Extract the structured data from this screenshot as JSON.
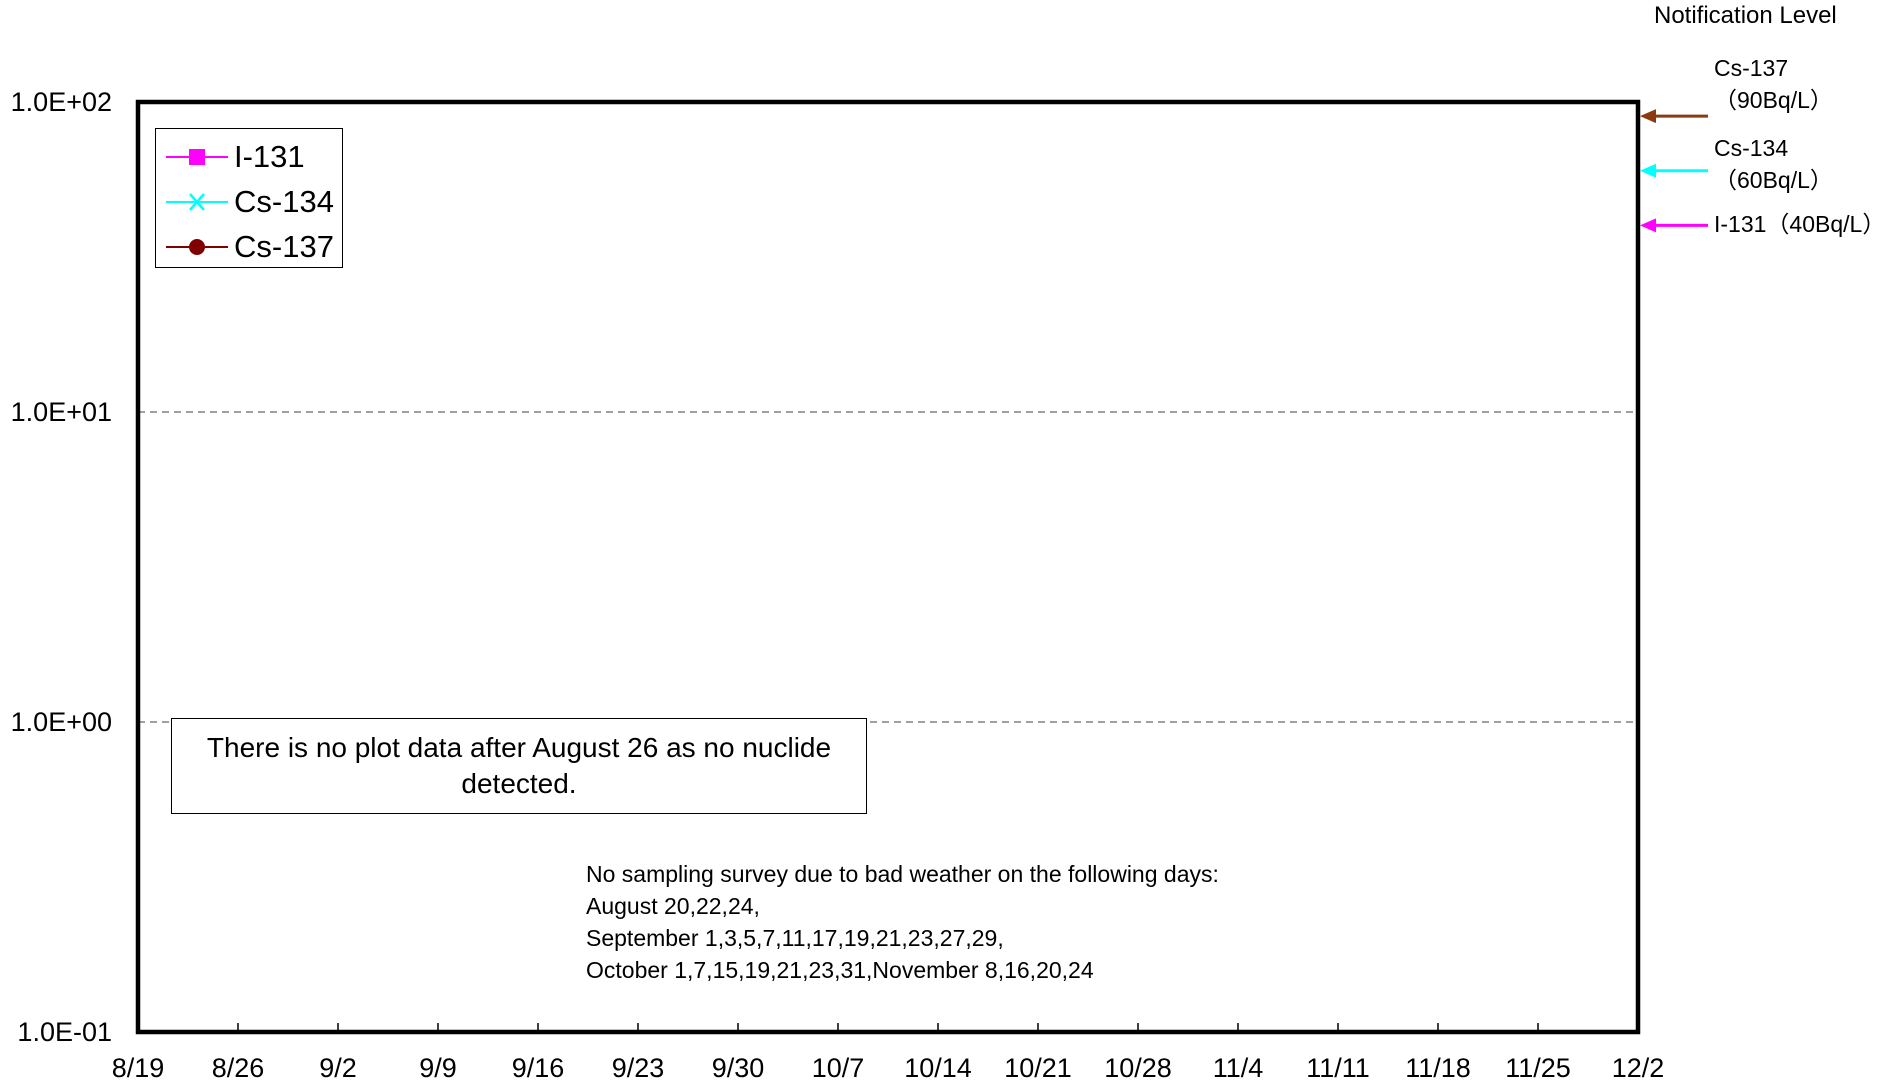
{
  "chart_data": {
    "type": "line",
    "yscale": "log",
    "ylim": [
      0.1,
      100
    ],
    "y_ticks": [
      "1.0E+02",
      "1.0E+01",
      "1.0E+00",
      "1.0E-01"
    ],
    "y_tick_values": [
      100,
      10,
      1,
      0.1
    ],
    "x_ticks": [
      "8/19",
      "8/26",
      "9/2",
      "9/9",
      "9/16",
      "9/23",
      "9/30",
      "10/7",
      "10/14",
      "10/21",
      "10/28",
      "11/4",
      "11/11",
      "11/18",
      "11/25",
      "12/2"
    ],
    "grid": "horizontal dashed",
    "legend": "top-left",
    "series": [
      {
        "name": "I-131",
        "color": "#ff00ff",
        "marker": "square",
        "values": []
      },
      {
        "name": "Cs-134",
        "color": "#00ffff",
        "marker": "x",
        "values": []
      },
      {
        "name": "Cs-137",
        "color": "#800000",
        "marker": "circle",
        "values": []
      }
    ],
    "notification_levels": {
      "title": "Notification Level",
      "items": [
        {
          "nuclide": "Cs-137",
          "label_line1": "Cs-137",
          "label_line2": "（90Bq/L）",
          "value": 90,
          "color": "#8b3a0f"
        },
        {
          "nuclide": "Cs-134",
          "label_line1": "Cs-134",
          "label_line2": "（60Bq/L）",
          "value": 60,
          "color": "#00ffff"
        },
        {
          "nuclide": "I-131",
          "label_line1": "I-131（40Bq/L）",
          "label_line2": "",
          "value": 40,
          "color": "#ff00ff"
        }
      ]
    },
    "annotations": {
      "no_data_note": "There is no plot data after August 26 as no nuclide detected.",
      "weather_note": [
        "No sampling survey due to bad weather on the following days:",
        "August 20,22,24,",
        "September 1,3,5,7,11,17,19,21,23,27,29,",
        "October 1,7,15,19,21,23,31,November 8,16,20,24"
      ]
    }
  }
}
